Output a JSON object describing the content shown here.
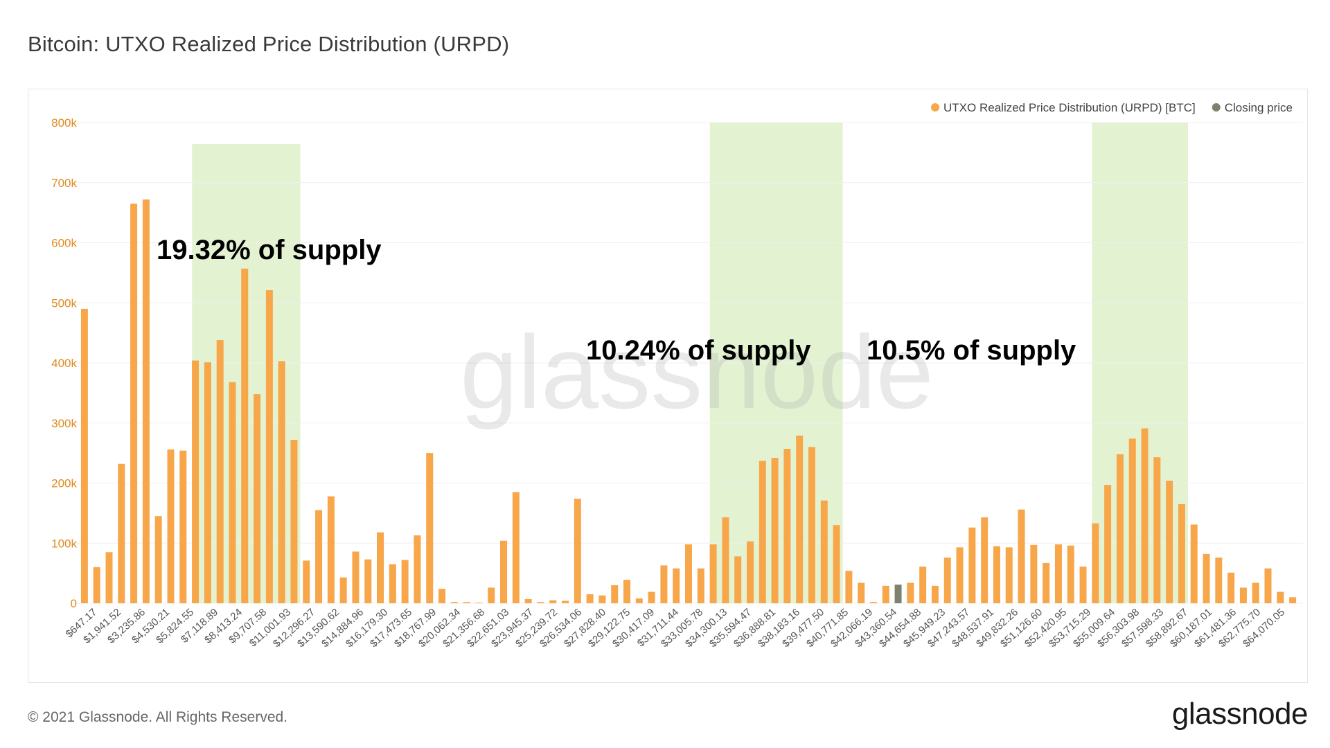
{
  "title": "Bitcoin: UTXO Realized Price Distribution (URPD)",
  "footer": {
    "copyright": "© 2021 Glassnode. All Rights Reserved.",
    "brand": "glassnode"
  },
  "colors": {
    "bar": "#f7a64a",
    "closing": "#7d8270",
    "highlight": "#e3f3d2",
    "grid": "#efefef",
    "tick_text": "#e08a1e",
    "annotation": "#000000"
  },
  "chart_data": {
    "type": "bar",
    "watermark": "glassnode",
    "legend": {
      "position": "top-right",
      "items": [
        {
          "label": "UTXO Realized Price Distribution (URPD) [BTC]",
          "color": "#f7a64a"
        },
        {
          "label": "Closing price",
          "color": "#7d8270"
        }
      ]
    },
    "ylim": [
      0,
      800000
    ],
    "yticks": [
      "0",
      "100k",
      "200k",
      "300k",
      "400k",
      "500k",
      "600k",
      "700k",
      "800k"
    ],
    "grid": true,
    "closing_price_index": 66,
    "bar_values": [
      490000,
      60000,
      85000,
      232000,
      665000,
      672000,
      145000,
      256000,
      254000,
      404000,
      401000,
      438000,
      368000,
      557000,
      348000,
      521000,
      403000,
      272000,
      71000,
      155000,
      178000,
      43000,
      86000,
      73000,
      118000,
      65000,
      72000,
      113000,
      250000,
      24000,
      2000,
      2000,
      1000,
      26000,
      104000,
      185000,
      7000,
      2000,
      5000,
      4000,
      174000,
      15000,
      13000,
      30000,
      39000,
      8000,
      19000,
      63000,
      58000,
      98000,
      58000,
      98000,
      143000,
      78000,
      103000,
      237000,
      242000,
      257000,
      279000,
      260000,
      171000,
      130000,
      54000,
      34000,
      2000,
      29000,
      31000,
      34000,
      61000,
      29000,
      76000,
      93000,
      126000,
      143000,
      95000,
      93000,
      156000,
      97000,
      67000,
      98000,
      96000,
      61000,
      133000,
      197000,
      248000,
      274000,
      291000,
      243000,
      204000,
      165000,
      131000,
      82000,
      76000,
      51000,
      26000,
      34000,
      58000,
      19000,
      10000
    ],
    "x_tick_labels": [
      "$647.17",
      "$1,941.52",
      "$3,235.86",
      "$4,530.21",
      "$5,824.55",
      "$7,118.89",
      "$8,413.24",
      "$9,707.58",
      "$11,001.93",
      "$12,296.27",
      "$13,590.62",
      "$14,884.96",
      "$16,179.30",
      "$17,473.65",
      "$18,767.99",
      "$20,062.34",
      "$21,356.68",
      "$22,651.03",
      "$23,945.37",
      "$25,239.72",
      "$26,534.06",
      "$27,828.40",
      "$29,122.75",
      "$30,417.09",
      "$31,711.44",
      "$33,005.78",
      "$34,300.13",
      "$35,594.47",
      "$36,888.81",
      "$38,183.16",
      "$39,477.50",
      "$40,771.85",
      "$42,066.19",
      "$43,360.54",
      "$44,654.88",
      "$45,949.23",
      "$47,243.57",
      "$48,537.91",
      "$49,832.26",
      "$51,126.60",
      "$52,420.95",
      "$53,715.29",
      "$55,009.64",
      "$56,303.98",
      "$57,598.33",
      "$58,892.67",
      "$60,187.01",
      "$61,481.36",
      "$62,775.70",
      "$64,070.05"
    ],
    "highlight_bands": [
      {
        "label": "19.32% of supply",
        "from_index": 9,
        "to_index": 17
      },
      {
        "label": "10.24% of supply",
        "from_index": 51,
        "to_index": 61
      },
      {
        "label": "10.5% of supply",
        "from_index": 82,
        "to_index": 89
      }
    ]
  }
}
